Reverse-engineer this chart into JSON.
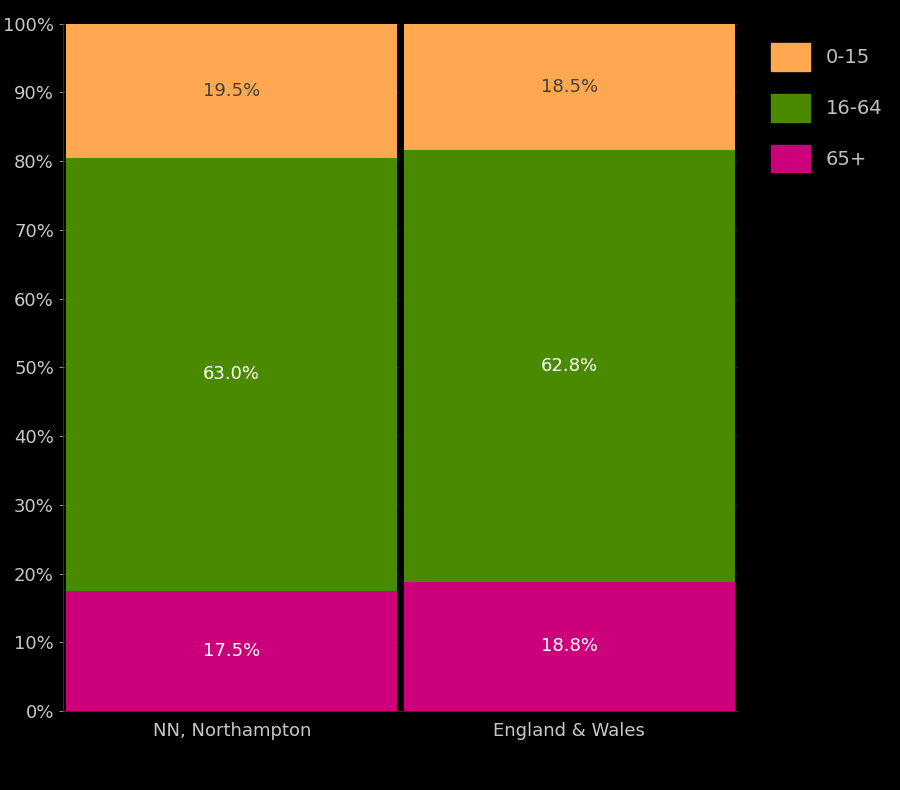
{
  "categories": [
    "NN, Northampton",
    "England & Wales"
  ],
  "segments": {
    "65+": [
      17.5,
      18.8
    ],
    "16-64": [
      63.0,
      62.8
    ],
    "0-15": [
      19.5,
      18.5
    ]
  },
  "colors": {
    "65+": "#CC007A",
    "16-64": "#4A8A00",
    "0-15": "#FFA850"
  },
  "label_colors": {
    "65+": "#FFFFFF",
    "16-64": "#FFFFFF",
    "0-15": "#404040"
  },
  "segment_order": [
    "65+",
    "16-64",
    "0-15"
  ],
  "background_color": "#000000",
  "text_color": "#FFFFFF",
  "axis_text_color": "#FFFFFF",
  "tick_label_color": "#C8C8C8",
  "divider_color": "#000000",
  "label_fontsize": 13,
  "tick_fontsize": 13,
  "legend_fontsize": 14,
  "legend_text_color": "#C0C0C0",
  "bar_width": 0.98,
  "figsize": [
    9.0,
    7.9
  ],
  "dpi": 100,
  "ylim": [
    0,
    100
  ],
  "yticks": [
    0,
    10,
    20,
    30,
    40,
    50,
    60,
    70,
    80,
    90,
    100
  ],
  "ytick_labels": [
    "0%",
    "10%",
    "20%",
    "30%",
    "40%",
    "50%",
    "60%",
    "70%",
    "80%",
    "90%",
    "100%"
  ]
}
